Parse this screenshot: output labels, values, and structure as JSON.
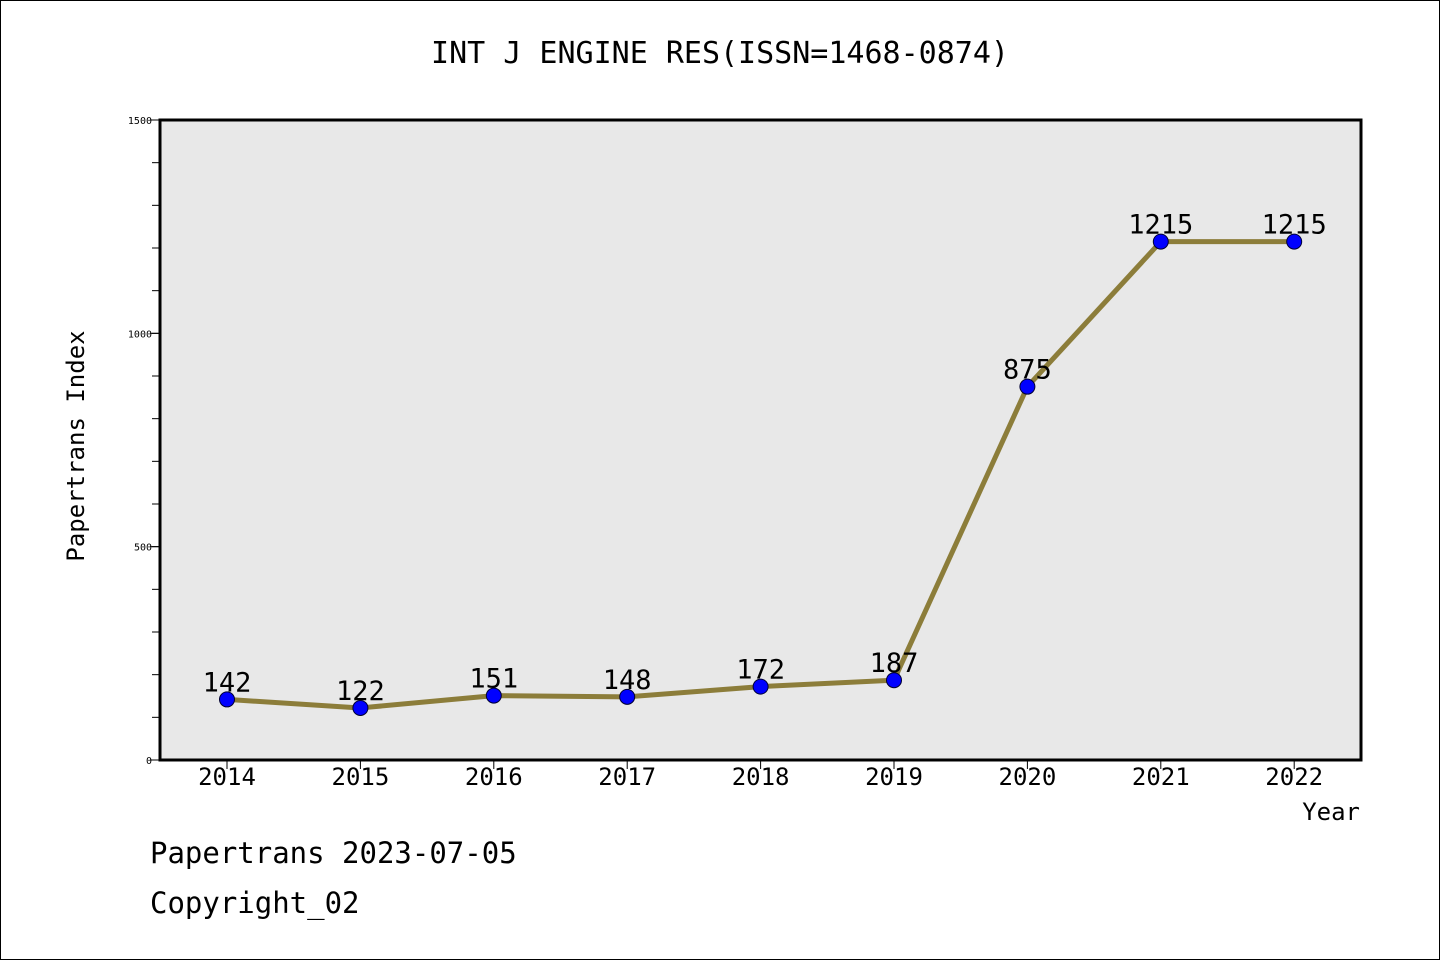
{
  "chart_data": {
    "type": "line",
    "title": "INT J ENGINE RES(ISSN=1468-0874)",
    "xlabel": "Year",
    "ylabel": "Papertrans Index",
    "categories": [
      "2014",
      "2015",
      "2016",
      "2017",
      "2018",
      "2019",
      "2020",
      "2021",
      "2022"
    ],
    "series": [
      {
        "values": [
          142,
          122,
          151,
          148,
          172,
          187,
          875,
          1215,
          1215
        ]
      }
    ],
    "ylim": [
      0,
      1500
    ],
    "yticks": [
      "0",
      "500",
      "1000",
      "1500"
    ],
    "grid": false,
    "legend": "none",
    "data_labels": true
  },
  "colors": {
    "line": "#8c7d3a",
    "marker": "#0000ff",
    "plot_background": "#e8e8e8"
  },
  "footer": {
    "date_line": "Papertrans 2023-07-05",
    "copyright": "Copyright_02"
  }
}
